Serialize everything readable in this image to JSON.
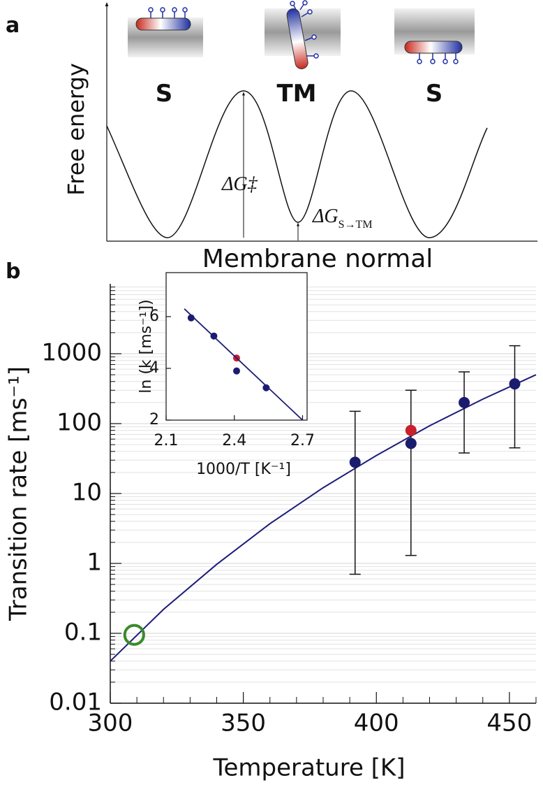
{
  "panel_a": {
    "label": "a",
    "y_axis_label": "Free energy",
    "x_axis_label": "Membrane normal",
    "states": [
      "S",
      "TM",
      "S"
    ],
    "barrier_label": "ΔG‡",
    "transfer_label": {
      "text": "ΔG",
      "sub": "S→TM"
    }
  },
  "panel_b": {
    "label": "b"
  },
  "chart_data": [
    {
      "type": "scatter",
      "x_label": "Temperature [K]",
      "y_label": "Transition rate [ms⁻¹]",
      "xlim": [
        300,
        460
      ],
      "xticks": [
        300,
        350,
        400,
        450
      ],
      "xticks_minor": [
        310,
        320,
        330,
        340,
        360,
        370,
        380,
        390,
        410,
        420,
        430,
        440,
        460
      ],
      "ylim": [
        0.01,
        10000
      ],
      "log_y": true,
      "grid": true,
      "yticks": [
        0.01,
        0.1,
        1,
        10,
        100,
        1000
      ],
      "yticks_minor": [
        0.02,
        0.03,
        0.04,
        0.05,
        0.06,
        0.07,
        0.08,
        0.09,
        0.2,
        0.3,
        0.4,
        0.5,
        0.6,
        0.7,
        0.8,
        0.9,
        2,
        3,
        4,
        5,
        6,
        7,
        8,
        9,
        20,
        30,
        40,
        50,
        60,
        70,
        80,
        90,
        200,
        300,
        400,
        500,
        600,
        700,
        800,
        900,
        2000,
        3000,
        4000,
        5000,
        6000,
        7000,
        8000,
        9000
      ],
      "series": [
        {
          "type": "line",
          "color": "#1c1c78",
          "x": [
            300,
            320,
            340,
            360,
            380,
            400,
            420,
            440,
            460
          ],
          "values": [
            0.04,
            0.22,
            0.97,
            3.7,
            12.1,
            35,
            93,
            224,
            500
          ]
        },
        {
          "type": "errorbar",
          "color": "#1c1c6e",
          "x": [
            392,
            413,
            433,
            452
          ],
          "values": [
            28,
            52,
            200,
            370
          ],
          "err_low": [
            0.7,
            1.3,
            38,
            45
          ],
          "err_high": [
            150,
            300,
            550,
            1300
          ]
        },
        {
          "type": "scatter",
          "color": "#c8202c",
          "x": [
            413
          ],
          "values": [
            80
          ]
        },
        {
          "type": "open",
          "color": "#3a8a2a",
          "x": [
            309
          ],
          "values": [
            0.095
          ]
        }
      ]
    },
    {
      "type": "scatter",
      "x_label": "1000/T [K⁻¹]",
      "y_label": "ln (k [ms⁻¹])",
      "xlim": [
        2.1,
        2.72
      ],
      "xticks": [
        2.1,
        2.4,
        2.7
      ],
      "ylim": [
        2,
        7.7
      ],
      "yticks": [
        2,
        4,
        6
      ],
      "series": [
        {
          "type": "scatter",
          "color": "#1c1c6e",
          "x": [
            2.21,
            2.31,
            2.41,
            2.54
          ],
          "values": [
            5.95,
            5.25,
            3.9,
            3.25
          ]
        },
        {
          "type": "scatter",
          "color": "#c8202c",
          "x": [
            2.41
          ],
          "values": [
            4.4
          ]
        },
        {
          "type": "line",
          "color": "#1c1c78",
          "x": [
            2.18,
            2.7
          ],
          "values": [
            6.3,
            2.0
          ]
        }
      ]
    }
  ]
}
